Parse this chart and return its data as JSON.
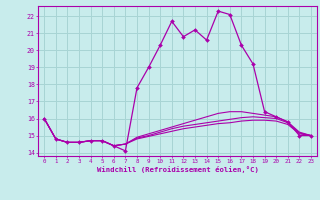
{
  "background_color": "#c8ecec",
  "grid_color": "#a8d4d4",
  "line_color": "#aa00aa",
  "marker_color": "#aa00aa",
  "xlabel": "Windchill (Refroidissement éolien,°C)",
  "xlim": [
    -0.5,
    23.5
  ],
  "ylim": [
    13.8,
    22.6
  ],
  "yticks": [
    14,
    15,
    16,
    17,
    18,
    19,
    20,
    21,
    22
  ],
  "xticks": [
    0,
    1,
    2,
    3,
    4,
    5,
    6,
    7,
    8,
    9,
    10,
    11,
    12,
    13,
    14,
    15,
    16,
    17,
    18,
    19,
    20,
    21,
    22,
    23
  ],
  "series_main": [
    16.0,
    14.8,
    14.6,
    14.6,
    14.7,
    14.7,
    14.4,
    14.1,
    17.8,
    19.0,
    20.3,
    21.7,
    20.8,
    21.2,
    20.6,
    22.3,
    22.1,
    20.3,
    19.2,
    16.4,
    16.1,
    15.8,
    15.0,
    15.0
  ],
  "series_lower": [
    [
      16.0,
      14.8,
      14.6,
      14.6,
      14.7,
      14.7,
      14.4,
      14.5,
      14.9,
      15.1,
      15.3,
      15.5,
      15.7,
      15.9,
      16.1,
      16.3,
      16.4,
      16.4,
      16.3,
      16.2,
      16.1,
      15.8,
      15.2,
      15.0
    ],
    [
      16.0,
      14.8,
      14.6,
      14.6,
      14.7,
      14.7,
      14.4,
      14.5,
      14.85,
      15.0,
      15.2,
      15.4,
      15.55,
      15.65,
      15.75,
      15.85,
      15.95,
      16.05,
      16.1,
      16.05,
      16.0,
      15.75,
      15.15,
      15.0
    ],
    [
      16.0,
      14.8,
      14.6,
      14.6,
      14.7,
      14.7,
      14.4,
      14.5,
      14.8,
      14.95,
      15.1,
      15.25,
      15.4,
      15.5,
      15.6,
      15.7,
      15.75,
      15.85,
      15.9,
      15.9,
      15.85,
      15.65,
      15.1,
      15.0
    ]
  ]
}
